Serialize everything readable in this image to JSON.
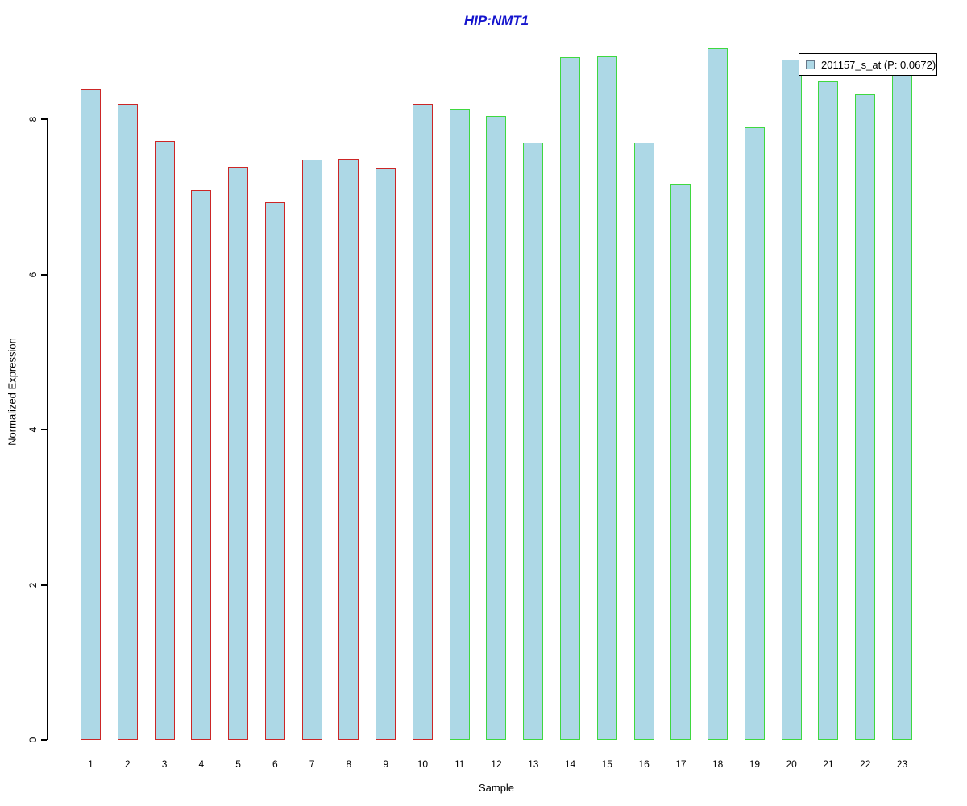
{
  "colors": {
    "background": "#FFFFFF",
    "title_text": "#1515CD",
    "axis": "#000000",
    "bar_fill": "#ADD8E6",
    "group1_border": "#CC2626",
    "group2_border": "#3FD83F",
    "legend_border": "#000000",
    "legend_swatch_border": "#667788",
    "legend_swatch_fill": "#ADD8E6"
  },
  "legend": {
    "label": "201157_s_at (P: 0.0672)",
    "probe": "201157_s_at",
    "p_value": "0.0672",
    "position": "top-right"
  },
  "chart_data": {
    "type": "bar",
    "title": "HIP:NMT1",
    "xlabel": "Sample",
    "ylabel": "Normalized Expression",
    "ylim": [
      0,
      9.2
    ],
    "yticks": [
      0,
      2,
      4,
      6,
      8
    ],
    "grid": false,
    "legend_position": "top-right",
    "categories": [
      "1",
      "2",
      "3",
      "4",
      "5",
      "6",
      "7",
      "8",
      "9",
      "10",
      "11",
      "12",
      "13",
      "14",
      "15",
      "16",
      "17",
      "18",
      "19",
      "20",
      "21",
      "22",
      "23"
    ],
    "series": [
      {
        "name": "201157_s_at (P: 0.0672)",
        "values": [
          8.38,
          8.2,
          7.72,
          7.09,
          7.39,
          6.93,
          7.48,
          7.49,
          7.37,
          8.2,
          8.13,
          8.04,
          7.7,
          8.8,
          8.81,
          7.7,
          7.17,
          8.91,
          7.9,
          8.77,
          8.49,
          8.32,
          8.62
        ]
      }
    ],
    "bar_fill": "#ADD8E6",
    "bar_groups": [
      {
        "samples": "1-10",
        "count": 10,
        "border_color": "#CC2626"
      },
      {
        "samples": "11-23",
        "count": 13,
        "border_color": "#3FD83F"
      }
    ]
  }
}
